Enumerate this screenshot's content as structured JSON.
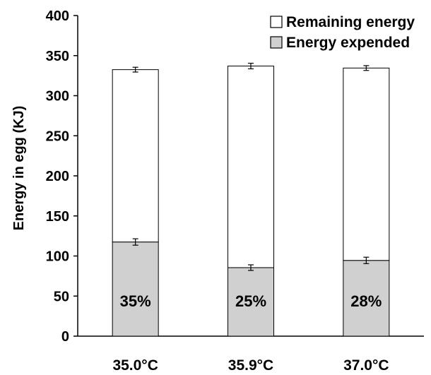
{
  "chart_data": {
    "type": "bar",
    "stacked": true,
    "categories": [
      "35.0°C",
      "35.9°C",
      "37.0°C"
    ],
    "series": [
      {
        "name": "Energy expended",
        "color": "#d0d0d0",
        "values": [
          117.5,
          85.5,
          94.5
        ],
        "error": [
          4,
          3.5,
          4
        ]
      },
      {
        "name": "Remaining energy",
        "color": "#ffffff",
        "values": [
          215,
          251.5,
          240
        ],
        "error": [
          3,
          3.5,
          3
        ]
      }
    ],
    "totals": [
      332.5,
      337,
      334.5
    ],
    "bar_labels": [
      "35%",
      "25%",
      "28%"
    ],
    "title": "",
    "xlabel": "",
    "ylabel": "Energy in egg (KJ)",
    "ylim": [
      0,
      400
    ],
    "yticks": [
      "0",
      "50",
      "100",
      "150",
      "200",
      "250",
      "300",
      "350",
      "400"
    ],
    "grid": false,
    "legend_position": "top-right"
  }
}
